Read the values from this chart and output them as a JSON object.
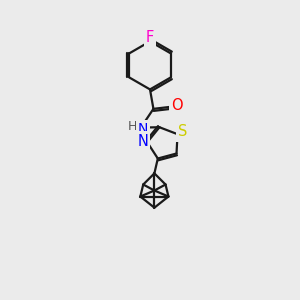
{
  "background_color": "#ebebeb",
  "bond_color": "#1a1a1a",
  "bond_width": 1.6,
  "atom_colors": {
    "F": "#ff00cc",
    "O": "#ff0000",
    "N": "#0000ff",
    "S": "#cccc00",
    "H": "#555555",
    "C": "#1a1a1a"
  },
  "font_size": 9.5
}
